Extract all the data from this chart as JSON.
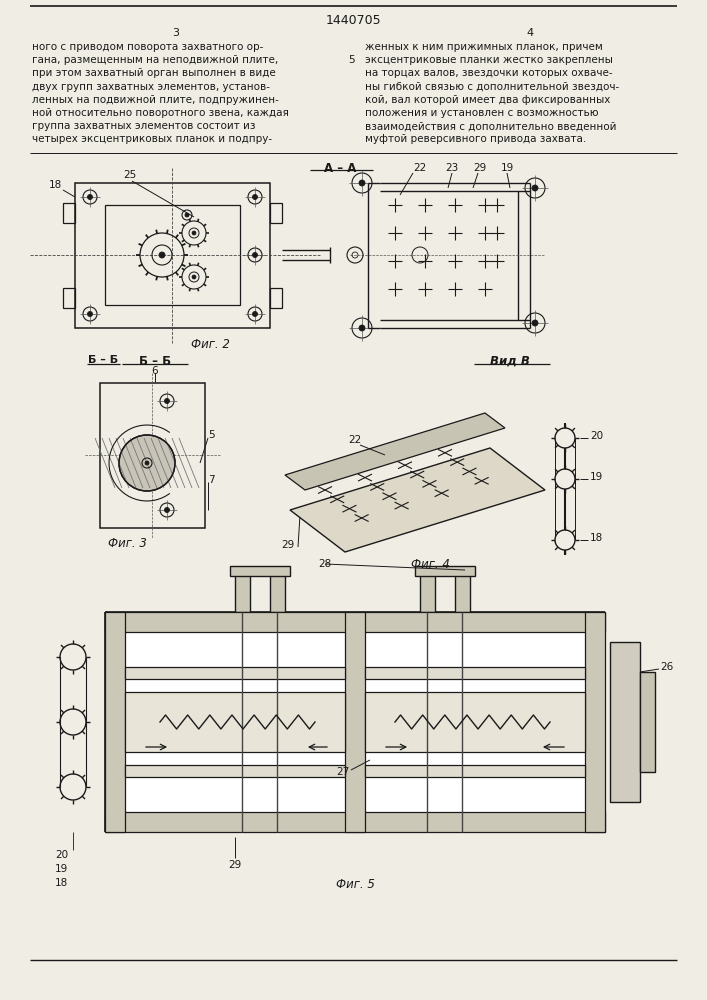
{
  "title": "1440705",
  "page_numbers": [
    "3",
    "4"
  ],
  "background_color": "#f0ede4",
  "line_color": "#1a1a1a",
  "text_color": "#1a1a1a",
  "fig_width": 7.07,
  "fig_height": 10.0,
  "dpi": 100,
  "left_text": "ного с приводом поворота захватного ор-\nгана, размещенным на неподвижной плите,\nпри этом захватный орган выполнен в виде\nдвух групп захватных элементов, установ-\nленных на подвижной плите, подпружинен-\nной относительно поворотного звена, каждая\nгруппа захватных элементов состоит из\nчетырех эксцентриковых планок и подпру-",
  "right_text": "женных к ним прижимных планок, причем\nэксцентриковые планки жестко закреплены\nна торцах валов, звездочки которых охваче-\nны гибкой связью с дополнительной звездоч-\nкой, вал которой имеет два фиксированных\nположения и установлен с возможностью\nвзаимодействия с дополнительно введенной\nмуфтой реверсивного привода захвата.",
  "fig2_label": "Фиг. 2",
  "fig3_label": "Фиг. 3",
  "fig4_label": "Фиг. 4",
  "fig5_label": "Фиг. 5",
  "section_AA": "А – А",
  "section_BB": "Б – Б",
  "view_B": "Вид В"
}
